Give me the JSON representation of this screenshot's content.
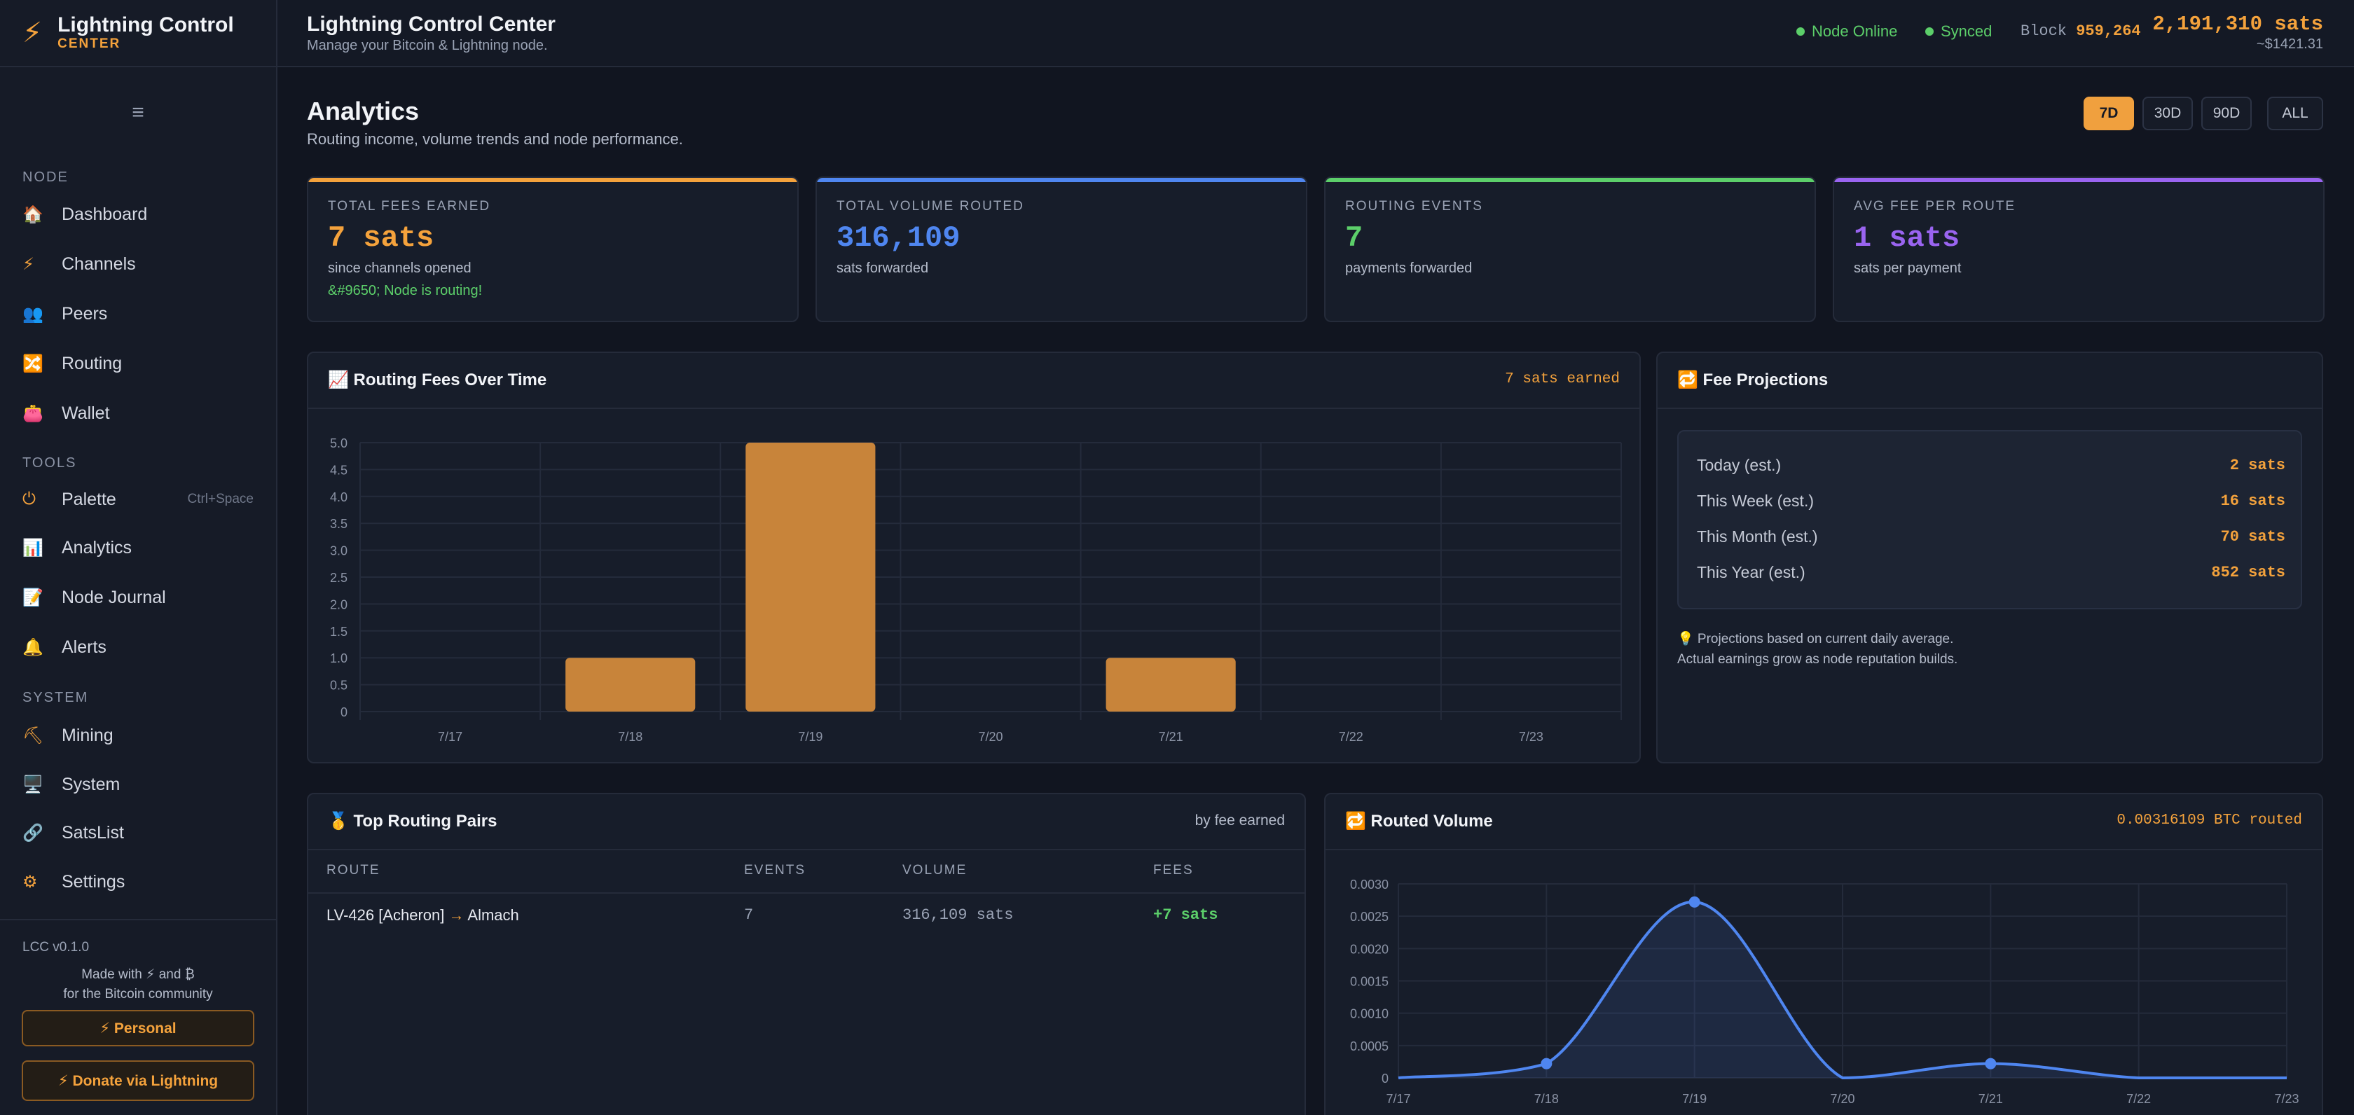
{
  "app": {
    "brand_title": "Lightning Control",
    "brand_sub": "CENTER",
    "brand_icon": "⚡"
  },
  "sidebar": {
    "menu_icon": "≡",
    "sections": {
      "node": "NODE",
      "tools": "TOOLS",
      "system": "SYSTEM"
    },
    "items": [
      {
        "icon": "🏠",
        "label": "Dashboard"
      },
      {
        "icon": "⚡",
        "label": "Channels"
      },
      {
        "icon": "👥",
        "label": "Peers"
      },
      {
        "icon": "🔀",
        "label": "Routing"
      },
      {
        "icon": "👛",
        "label": "Wallet"
      },
      {
        "icon": "⏻",
        "label": "Palette",
        "hint": "Ctrl+Space"
      },
      {
        "icon": "📊",
        "label": "Analytics"
      },
      {
        "icon": "📝",
        "label": "Node Journal"
      },
      {
        "icon": "🔔",
        "label": "Alerts"
      },
      {
        "icon": "⛏",
        "label": "Mining"
      },
      {
        "icon": "🖥️",
        "label": "System"
      },
      {
        "icon": "🔗",
        "label": "SatsList"
      },
      {
        "icon": "⚙",
        "label": "Settings"
      }
    ],
    "version": "LCC v0.1.0",
    "made_with_1": "Made with ⚡ and ₿",
    "made_with_2": "for the Bitcoin community",
    "personal_button": "⚡ Personal",
    "donate_button": "⚡ Donate via Lightning"
  },
  "header": {
    "title": "Lightning Control Center",
    "subtitle": "Manage your Bitcoin & Lightning node.",
    "status_online": "Node Online",
    "status_synced": "Synced",
    "block_label": "Block",
    "block_height": "959,264",
    "balance": "2,191,310 sats",
    "balance_usd": "~$1421.31"
  },
  "page": {
    "title": "Analytics",
    "subtitle": "Routing income, volume trends and node performance.",
    "ranges": [
      "7D",
      "30D",
      "90D",
      "ALL"
    ],
    "active_range": "7D"
  },
  "cards": [
    {
      "label": "TOTAL FEES EARNED",
      "value": "7 sats",
      "desc": "since channels opened",
      "note": "&#9650; Node is routing!",
      "color": "#f4a23c"
    },
    {
      "label": "TOTAL VOLUME ROUTED",
      "value": "316,109",
      "desc": "sats forwarded",
      "color": "#4f86f0"
    },
    {
      "label": "ROUTING EVENTS",
      "value": "7",
      "desc": "payments forwarded",
      "color": "#5ccf6a"
    },
    {
      "label": "AVG FEE PER ROUTE",
      "value": "1 sats",
      "desc": "sats per payment",
      "color": "#9a64f0"
    }
  ],
  "fees_panel": {
    "title": "📈 Routing Fees Over Time",
    "right": "7 sats earned"
  },
  "projections": {
    "title": "🔁 Fee Projections",
    "rows": [
      {
        "label": "Today (est.)",
        "value": "2 sats"
      },
      {
        "label": "This Week (est.)",
        "value": "16 sats"
      },
      {
        "label": "This Month (est.)",
        "value": "70 sats"
      },
      {
        "label": "This Year (est.)",
        "value": "852 sats"
      }
    ],
    "note_1": "💡 Projections based on current daily average.",
    "note_2": "Actual earnings grow as node reputation builds."
  },
  "pairs": {
    "title": "🥇 Top Routing Pairs",
    "right": "by fee earned",
    "columns": [
      "ROUTE",
      "EVENTS",
      "VOLUME",
      "FEES"
    ],
    "rows": [
      {
        "from": "LV-426 [Acheron]",
        "arrow": "→",
        "to": "Almach",
        "events": "7",
        "volume": "316,109 sats",
        "fees": "+7 sats"
      }
    ]
  },
  "volume_panel": {
    "title": "🔁 Routed Volume",
    "right": "0.00316109 BTC routed"
  },
  "chart_data": [
    {
      "type": "bar",
      "categories": [
        "7/17",
        "7/18",
        "7/19",
        "7/20",
        "7/21",
        "7/22",
        "7/23"
      ],
      "values": [
        0,
        1,
        5,
        0,
        1,
        0,
        0
      ],
      "ylim": [
        0,
        5
      ],
      "yticks": [
        "0",
        "0.5",
        "1.0",
        "1.5",
        "2.0",
        "2.5",
        "3.0",
        "3.5",
        "4.0",
        "4.5",
        "5.0"
      ],
      "grid": true,
      "color": "#c8843a"
    },
    {
      "type": "area",
      "categories": [
        "7/17",
        "7/18",
        "7/19",
        "7/20",
        "7/21",
        "7/22",
        "7/23"
      ],
      "values": [
        0,
        0.00022,
        0.00272,
        0,
        0.00022,
        0,
        0
      ],
      "ylim": [
        0,
        0.003
      ],
      "yticks": [
        "0",
        "0.0005",
        "0.0010",
        "0.0015",
        "0.0020",
        "0.0025",
        "0.0030"
      ],
      "grid": true,
      "color": "#4f86f0"
    }
  ]
}
